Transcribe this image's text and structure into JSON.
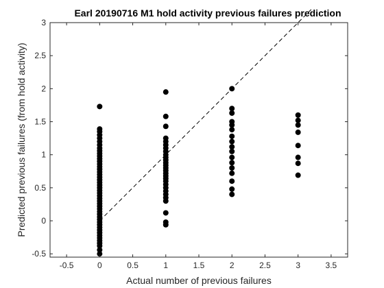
{
  "chart_data": {
    "type": "scatter",
    "title": "Earl 20190716 M1 hold activity previous failures prediction",
    "xlabel": "Actual number of previous failures",
    "ylabel": "Predicted previous failures (from hold activity)",
    "xlim": [
      -0.75,
      3.75
    ],
    "ylim": [
      -0.55,
      3.0
    ],
    "xticks": [
      -0.5,
      0,
      0.5,
      1,
      1.5,
      2,
      2.5,
      3,
      3.5
    ],
    "xtick_labels": [
      "-0.5",
      "0",
      "0.5",
      "1",
      "1.5",
      "2",
      "2.5",
      "3",
      "3.5"
    ],
    "yticks": [
      -0.5,
      0,
      0.5,
      1,
      1.5,
      2,
      2.5,
      3
    ],
    "ytick_labels": [
      "-0.5",
      "0",
      "0.5",
      "1",
      "1.5",
      "2",
      "2.5",
      "3"
    ],
    "grid": false,
    "reference_line": {
      "style": "dashed",
      "x": [
        0,
        3.2
      ],
      "y": [
        0,
        3.2
      ]
    },
    "series": [
      {
        "color": "#000000",
        "points": [
          [
            0,
            1.73
          ],
          [
            0,
            1.39
          ],
          [
            0,
            1.35
          ],
          [
            0,
            1.3
          ],
          [
            0,
            1.25
          ],
          [
            0,
            1.2
          ],
          [
            0,
            1.15
          ],
          [
            0,
            1.1
          ],
          [
            0,
            1.06
          ],
          [
            0,
            1.02
          ],
          [
            0,
            0.98
          ],
          [
            0,
            0.94
          ],
          [
            0,
            0.9
          ],
          [
            0,
            0.86
          ],
          [
            0,
            0.82
          ],
          [
            0,
            0.78
          ],
          [
            0,
            0.74
          ],
          [
            0,
            0.7
          ],
          [
            0,
            0.66
          ],
          [
            0,
            0.62
          ],
          [
            0,
            0.58
          ],
          [
            0,
            0.54
          ],
          [
            0,
            0.5
          ],
          [
            0,
            0.46
          ],
          [
            0,
            0.42
          ],
          [
            0,
            0.38
          ],
          [
            0,
            0.34
          ],
          [
            0,
            0.3
          ],
          [
            0,
            0.26
          ],
          [
            0,
            0.22
          ],
          [
            0,
            0.18
          ],
          [
            0,
            0.14
          ],
          [
            0,
            0.1
          ],
          [
            0,
            0.06
          ],
          [
            0,
            0.02
          ],
          [
            0,
            -0.02
          ],
          [
            0,
            -0.06
          ],
          [
            0,
            -0.1
          ],
          [
            0,
            -0.14
          ],
          [
            0,
            -0.18
          ],
          [
            0,
            -0.22
          ],
          [
            0,
            -0.26
          ],
          [
            0,
            -0.3
          ],
          [
            0,
            -0.34
          ],
          [
            0,
            -0.38
          ],
          [
            0,
            -0.44
          ],
          [
            0,
            -0.5
          ],
          [
            1,
            1.95
          ],
          [
            1,
            1.58
          ],
          [
            1,
            1.43
          ],
          [
            1,
            1.25
          ],
          [
            1,
            1.2
          ],
          [
            1,
            1.15
          ],
          [
            1,
            1.1
          ],
          [
            1,
            1.05
          ],
          [
            1,
            1.0
          ],
          [
            1,
            0.96
          ],
          [
            1,
            0.92
          ],
          [
            1,
            0.88
          ],
          [
            1,
            0.84
          ],
          [
            1,
            0.8
          ],
          [
            1,
            0.76
          ],
          [
            1,
            0.72
          ],
          [
            1,
            0.68
          ],
          [
            1,
            0.64
          ],
          [
            1,
            0.6
          ],
          [
            1,
            0.55
          ],
          [
            1,
            0.5
          ],
          [
            1,
            0.45
          ],
          [
            1,
            0.4
          ],
          [
            1,
            0.35
          ],
          [
            1,
            0.3
          ],
          [
            1,
            0.12
          ],
          [
            1,
            -0.02
          ],
          [
            1,
            -0.06
          ],
          [
            2,
            2.0
          ],
          [
            2,
            1.7
          ],
          [
            2,
            1.63
          ],
          [
            2,
            1.5
          ],
          [
            2,
            1.45
          ],
          [
            2,
            1.38
          ],
          [
            2,
            1.28
          ],
          [
            2,
            1.2
          ],
          [
            2,
            1.12
          ],
          [
            2,
            1.05
          ],
          [
            2,
            0.96
          ],
          [
            2,
            0.88
          ],
          [
            2,
            0.8
          ],
          [
            2,
            0.72
          ],
          [
            2,
            0.6
          ],
          [
            2,
            0.48
          ],
          [
            2,
            0.4
          ],
          [
            3,
            1.6
          ],
          [
            3,
            1.52
          ],
          [
            3,
            1.45
          ],
          [
            3,
            1.34
          ],
          [
            3,
            1.14
          ],
          [
            3,
            0.96
          ],
          [
            3,
            0.87
          ],
          [
            3,
            0.69
          ]
        ]
      }
    ]
  }
}
